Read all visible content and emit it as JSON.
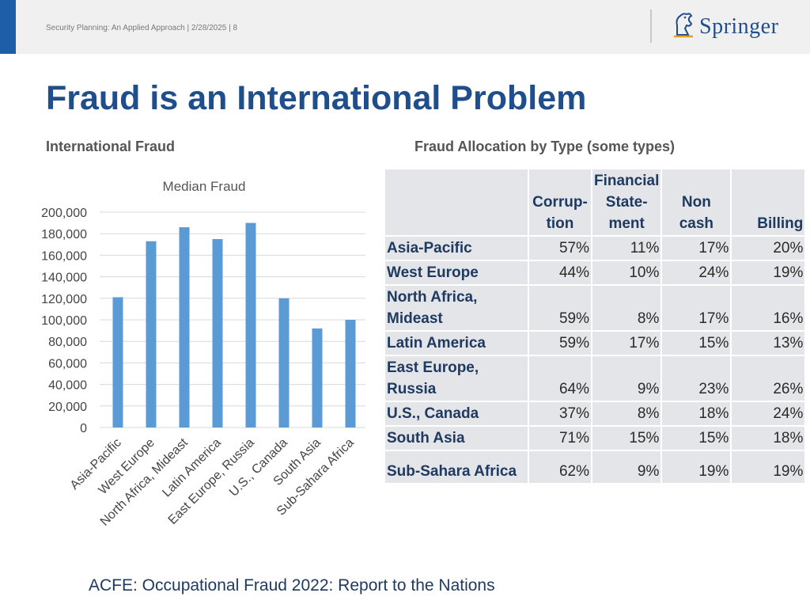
{
  "header": {
    "text": "Security Planning: An Applied Approach | 2/28/2025 | 8",
    "logo_text": "Springer"
  },
  "title": "Fraud is an International Problem",
  "left_subtitle": "International Fraud",
  "right_subtitle": "Fraud Allocation by Type (some types)",
  "chart_data": {
    "type": "bar",
    "title": "Median Fraud",
    "categories": [
      "Asia-Pacific",
      "West Europe",
      "North Africa, Mideast",
      "Latin America",
      "East Europe, Russia",
      "U.S., Canada",
      "South Asia",
      "Sub-Sahara Africa"
    ],
    "values": [
      121000,
      173000,
      186000,
      175000,
      190000,
      120000,
      92000,
      100000
    ],
    "yticks": [
      "0",
      "20,000",
      "40,000",
      "60,000",
      "80,000",
      "100,000",
      "120,000",
      "140,000",
      "160,000",
      "180,000",
      "200,000"
    ],
    "ylim": [
      0,
      200000
    ],
    "bar_color": "#5b9bd5",
    "grid": true
  },
  "table": {
    "headers": [
      "",
      "Corrup-\ntion",
      "Financial\nState-\nment",
      "Non\ncash",
      "Billing"
    ],
    "rows": [
      {
        "region": "Asia-Pacific",
        "values": [
          "57%",
          "11%",
          "17%",
          "20%"
        ]
      },
      {
        "region": "West Europe",
        "values": [
          "44%",
          "10%",
          "24%",
          "19%"
        ]
      },
      {
        "region": "North Africa,\nMideast",
        "values": [
          "59%",
          "8%",
          "17%",
          "16%"
        ]
      },
      {
        "region": "Latin America",
        "values": [
          "59%",
          "17%",
          "15%",
          "13%"
        ]
      },
      {
        "region": "East Europe,\nRussia",
        "values": [
          "64%",
          "9%",
          "23%",
          "26%"
        ]
      },
      {
        "region": "U.S., Canada",
        "values": [
          "37%",
          "8%",
          "18%",
          "24%"
        ]
      },
      {
        "region": "South Asia",
        "values": [
          "71%",
          "15%",
          "15%",
          "18%"
        ]
      },
      {
        "region": "Sub-Sahara Africa",
        "values": [
          "62%",
          "9%",
          "19%",
          "19%"
        ]
      }
    ]
  },
  "footer": "ACFE: Occupational Fraud 2022: Report to the Nations"
}
